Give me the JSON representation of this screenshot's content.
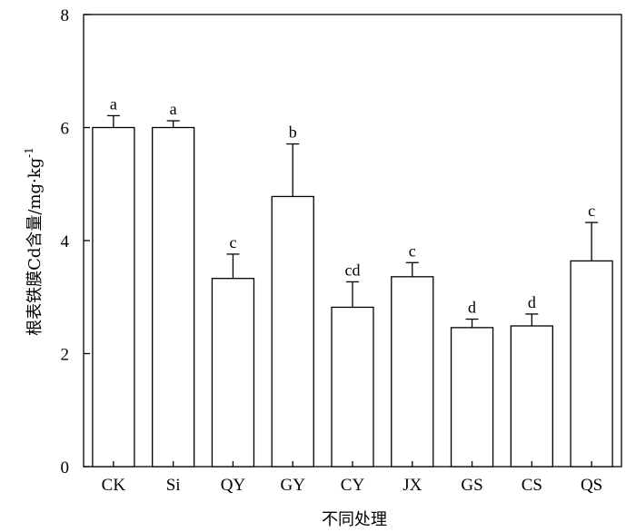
{
  "chart_data": {
    "type": "bar",
    "xlabel": "不同处理",
    "ylabel": "根表铁膜Cd含量/mg·kg",
    "ylabel_sup": "-1",
    "ylim": [
      0,
      8
    ],
    "yticks": [
      "0",
      "2",
      "4",
      "6",
      "8"
    ],
    "yticks_values": [
      0,
      2,
      4,
      6,
      8
    ],
    "categories": [
      "CK",
      "Si",
      "QY",
      "GY",
      "CY",
      "JX",
      "GS",
      "CS",
      "QS"
    ],
    "values": [
      6.0,
      6.0,
      3.33,
      4.78,
      2.82,
      3.36,
      2.46,
      2.49,
      3.64
    ],
    "errors": [
      0.21,
      0.12,
      0.43,
      0.93,
      0.45,
      0.25,
      0.15,
      0.21,
      0.68
    ],
    "significance": [
      "a",
      "a",
      "c",
      "b",
      "cd",
      "c",
      "d",
      "d",
      "c"
    ],
    "bar_color": "#ffffff",
    "grid": false,
    "legend": "none"
  }
}
